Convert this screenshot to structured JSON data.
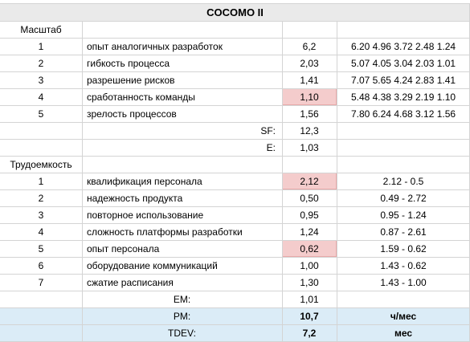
{
  "title": "COCOMO II",
  "scale_section": {
    "header": "Масштаб",
    "rows": [
      {
        "num": "1",
        "factor": "опыт аналогичных разработок",
        "value": "6,2",
        "range": "6.20  4.96  3.72  2.48  1.24",
        "highlight": false
      },
      {
        "num": "2",
        "factor": "гибкость процесса",
        "value": "2,03",
        "range": "5.07  4.05  3.04  2.03  1.01",
        "highlight": false
      },
      {
        "num": "3",
        "factor": "разрешение рисков",
        "value": "1,41",
        "range": "7.07  5.65  4.24  2.83  1.41",
        "highlight": false
      },
      {
        "num": "4",
        "factor": "сработанность команды",
        "value": "1,10",
        "range": "5.48  4.38  3.29  2.19  1.10",
        "highlight": true
      },
      {
        "num": "5",
        "factor": "зрелость процессов",
        "value": "1,56",
        "range": "7.80  6.24  4.68  3.12  1.56",
        "highlight": false
      }
    ],
    "sf_label": "SF:",
    "sf_value": "12,3",
    "e_label": "E:",
    "e_value": "1,03"
  },
  "effort_section": {
    "header": "Трудоемкость",
    "rows": [
      {
        "num": "1",
        "factor": "квалификация персонала",
        "value": "2,12",
        "range": "2.12 - 0.5",
        "highlight": true
      },
      {
        "num": "2",
        "factor": "надежность продукта",
        "value": "0,50",
        "range": "0.49 - 2.72",
        "highlight": false
      },
      {
        "num": "3",
        "factor": "повторное использование",
        "value": "0,95",
        "range": "0.95 - 1.24",
        "highlight": false
      },
      {
        "num": "4",
        "factor": "сложность платформы разработки",
        "value": "1,24",
        "range": "0.87 - 2.61",
        "highlight": false
      },
      {
        "num": "5",
        "factor": "опыт персонала",
        "value": "0,62",
        "range": "1.59 - 0.62",
        "highlight": true
      },
      {
        "num": "6",
        "factor": "оборудование коммуникаций",
        "value": "1,00",
        "range": "1.43 - 0.62",
        "highlight": false
      },
      {
        "num": "7",
        "factor": "сжатие расписания",
        "value": "1,30",
        "range": "1.43 - 1.00",
        "highlight": false
      }
    ],
    "em_label": "EM:",
    "em_value": "1,01"
  },
  "results": {
    "pm_label": "PM:",
    "pm_value": "10,7",
    "pm_unit": "ч/мес",
    "tdev_label": "TDEV:",
    "tdev_value": "7,2",
    "tdev_unit": "мес"
  },
  "colors": {
    "highlight": "#f4cccc",
    "result_fill": "#dbecf7",
    "title_fill": "#eaeaea",
    "grid": "#d4d4d4"
  }
}
